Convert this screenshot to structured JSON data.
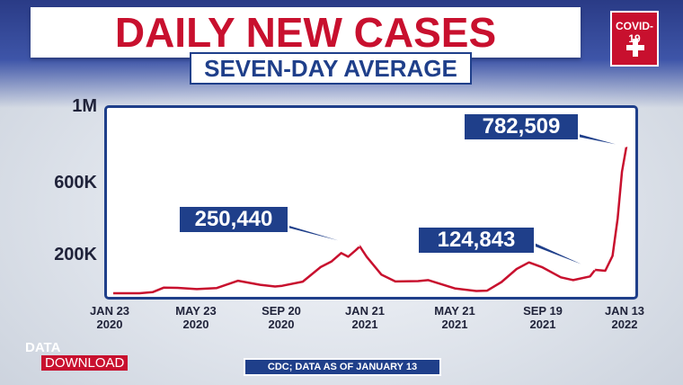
{
  "title": "DAILY NEW CASES",
  "subtitle": "SEVEN-DAY AVERAGE",
  "logo": {
    "text": "COVID-19",
    "icon": "plus-cross-icon",
    "color": "#c8102e"
  },
  "colors": {
    "line": "#c8102e",
    "accent_blue": "#1f3f8a",
    "title_red": "#c8102e"
  },
  "source": "CDC; DATA AS OF JANUARY 13",
  "brand": {
    "line1": "DATA",
    "line2": "DOWNLOAD"
  },
  "chart_data": {
    "type": "line",
    "title": "DAILY NEW CASES",
    "subtitle": "SEVEN-DAY AVERAGE",
    "ylim": [
      0,
      1000000
    ],
    "y_ticks": [
      {
        "label": "1M",
        "value": 1000000
      },
      {
        "label": "600K",
        "value": 600000
      },
      {
        "label": "200K",
        "value": 200000
      }
    ],
    "x_ticks": [
      {
        "line1": "JAN 23",
        "line2": "2020",
        "date": "2020-01-23"
      },
      {
        "line1": "MAY 23",
        "line2": "2020",
        "date": "2020-05-23"
      },
      {
        "line1": "SEP 20",
        "line2": "2020",
        "date": "2020-09-20"
      },
      {
        "line1": "JAN 21",
        "line2": "2021",
        "date": "2021-01-21"
      },
      {
        "line1": "MAY 21",
        "line2": "2021",
        "date": "2021-05-21"
      },
      {
        "line1": "SEP 19",
        "line2": "2021",
        "date": "2021-09-19"
      },
      {
        "line1": "JAN 13",
        "line2": "2022",
        "date": "2022-01-13"
      }
    ],
    "grid": false,
    "series": [
      {
        "points": [
          [
            "2020-01-23",
            0
          ],
          [
            "2020-03-01",
            100
          ],
          [
            "2020-03-20",
            6000
          ],
          [
            "2020-04-05",
            30000
          ],
          [
            "2020-04-25",
            29000
          ],
          [
            "2020-05-23",
            22000
          ],
          [
            "2020-06-20",
            28000
          ],
          [
            "2020-07-20",
            67000
          ],
          [
            "2020-08-20",
            45000
          ],
          [
            "2020-09-10",
            36000
          ],
          [
            "2020-09-20",
            40000
          ],
          [
            "2020-10-20",
            62000
          ],
          [
            "2020-11-15",
            140000
          ],
          [
            "2020-12-01",
            170000
          ],
          [
            "2020-12-15",
            215000
          ],
          [
            "2020-12-25",
            195000
          ],
          [
            "2021-01-05",
            230000
          ],
          [
            "2021-01-11",
            250440
          ],
          [
            "2021-01-21",
            195000
          ],
          [
            "2021-02-10",
            100000
          ],
          [
            "2021-03-01",
            63000
          ],
          [
            "2021-04-01",
            65000
          ],
          [
            "2021-04-15",
            70000
          ],
          [
            "2021-05-21",
            26000
          ],
          [
            "2021-06-20",
            12000
          ],
          [
            "2021-07-05",
            14000
          ],
          [
            "2021-07-25",
            60000
          ],
          [
            "2021-08-15",
            130000
          ],
          [
            "2021-09-01",
            165000
          ],
          [
            "2021-09-19",
            140000
          ],
          [
            "2021-10-15",
            85000
          ],
          [
            "2021-11-01",
            70000
          ],
          [
            "2021-11-24",
            90000
          ],
          [
            "2021-12-01",
            124843
          ],
          [
            "2021-12-15",
            120000
          ],
          [
            "2021-12-25",
            200000
          ],
          [
            "2022-01-01",
            400000
          ],
          [
            "2022-01-07",
            650000
          ],
          [
            "2022-01-13",
            782509
          ]
        ]
      }
    ],
    "annotations": [
      {
        "text": "250,440",
        "date": "2021-01-11",
        "value": 250440
      },
      {
        "text": "124,843",
        "date": "2021-12-01",
        "value": 124843
      },
      {
        "text": "782,509",
        "date": "2022-01-13",
        "value": 782509
      }
    ]
  }
}
